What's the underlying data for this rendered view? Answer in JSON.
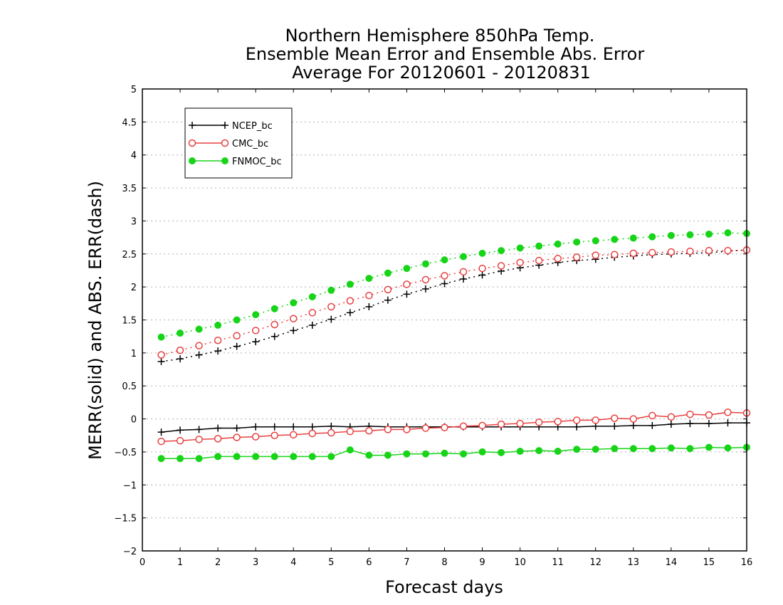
{
  "chart_data": {
    "type": "line",
    "title": [
      "Northern Hemisphere 850hPa Temp.",
      "Ensemble Mean Error and Ensemble Abs. Error",
      "Average For 20120601 - 20120831"
    ],
    "xlabel": "Forecast days",
    "ylabel": "MERR(solid) and ABS. ERR(dash)",
    "xlim": [
      0,
      16
    ],
    "ylim": [
      -2,
      5
    ],
    "xticks": [
      "0",
      "1",
      "2",
      "3",
      "4",
      "5",
      "6",
      "7",
      "8",
      "9",
      "10",
      "11",
      "12",
      "13",
      "14",
      "15",
      "16"
    ],
    "yticks": [
      "−2",
      "−1.5",
      "−1",
      "−0.5",
      "0",
      "0.5",
      "1",
      "1.5",
      "2",
      "2.5",
      "3",
      "3.5",
      "4",
      "4.5",
      "5"
    ],
    "grid": "horizontal dotted",
    "legend_position": "top-left",
    "x": [
      0.5,
      1,
      1.5,
      2,
      2.5,
      3,
      3.5,
      4,
      4.5,
      5,
      5.5,
      6,
      6.5,
      7,
      7.5,
      8,
      8.5,
      9,
      9.5,
      10,
      10.5,
      11,
      11.5,
      12,
      12.5,
      13,
      13.5,
      14,
      14.5,
      15,
      15.5,
      16
    ],
    "series": [
      {
        "name": "NCEP_bc",
        "color": "#000000",
        "marker": "plus",
        "merr": [
          -0.2,
          -0.17,
          -0.16,
          -0.14,
          -0.14,
          -0.12,
          -0.12,
          -0.12,
          -0.12,
          -0.11,
          -0.12,
          -0.11,
          -0.12,
          -0.12,
          -0.12,
          -0.12,
          -0.12,
          -0.12,
          -0.12,
          -0.12,
          -0.12,
          -0.12,
          -0.12,
          -0.11,
          -0.11,
          -0.1,
          -0.1,
          -0.08,
          -0.07,
          -0.07,
          -0.06,
          -0.06
        ],
        "abs_err": [
          0.87,
          0.91,
          0.97,
          1.03,
          1.1,
          1.17,
          1.25,
          1.34,
          1.42,
          1.51,
          1.61,
          1.7,
          1.8,
          1.89,
          1.97,
          2.05,
          2.12,
          2.18,
          2.24,
          2.29,
          2.33,
          2.37,
          2.4,
          2.42,
          2.45,
          2.47,
          2.49,
          2.5,
          2.51,
          2.52,
          2.54,
          2.56
        ]
      },
      {
        "name": "CMC_bc",
        "color": "#e84040",
        "marker": "circle-open",
        "merr": [
          -0.34,
          -0.33,
          -0.31,
          -0.3,
          -0.28,
          -0.27,
          -0.25,
          -0.24,
          -0.22,
          -0.21,
          -0.19,
          -0.18,
          -0.16,
          -0.16,
          -0.14,
          -0.13,
          -0.11,
          -0.1,
          -0.08,
          -0.07,
          -0.05,
          -0.04,
          -0.02,
          -0.02,
          0.01,
          0.0,
          0.05,
          0.03,
          0.07,
          0.06,
          0.1,
          0.09
        ],
        "abs_err": [
          0.97,
          1.04,
          1.11,
          1.19,
          1.26,
          1.34,
          1.43,
          1.52,
          1.61,
          1.7,
          1.79,
          1.87,
          1.96,
          2.04,
          2.11,
          2.17,
          2.23,
          2.28,
          2.32,
          2.37,
          2.4,
          2.43,
          2.45,
          2.48,
          2.49,
          2.51,
          2.52,
          2.53,
          2.54,
          2.55,
          2.55,
          2.56
        ]
      },
      {
        "name": "FNMOC_bc",
        "color": "#18d418",
        "marker": "circle-filled",
        "merr": [
          -0.6,
          -0.6,
          -0.6,
          -0.57,
          -0.57,
          -0.57,
          -0.57,
          -0.57,
          -0.57,
          -0.57,
          -0.47,
          -0.55,
          -0.55,
          -0.53,
          -0.53,
          -0.52,
          -0.53,
          -0.5,
          -0.51,
          -0.49,
          -0.48,
          -0.49,
          -0.46,
          -0.46,
          -0.45,
          -0.45,
          -0.45,
          -0.44,
          -0.45,
          -0.43,
          -0.44,
          -0.43
        ],
        "abs_err": [
          1.24,
          1.3,
          1.36,
          1.42,
          1.5,
          1.58,
          1.67,
          1.76,
          1.85,
          1.95,
          2.04,
          2.13,
          2.21,
          2.28,
          2.35,
          2.41,
          2.46,
          2.51,
          2.55,
          2.59,
          2.62,
          2.65,
          2.68,
          2.7,
          2.72,
          2.74,
          2.76,
          2.78,
          2.79,
          2.8,
          2.82,
          2.81
        ]
      }
    ]
  }
}
